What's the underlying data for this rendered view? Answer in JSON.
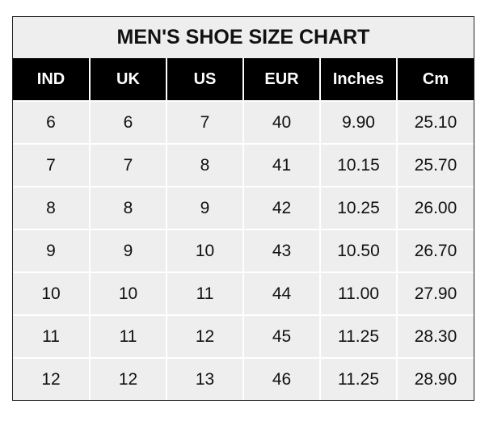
{
  "title": "MEN'S SHOE SIZE CHART",
  "columns": [
    "IND",
    "UK",
    "US",
    "EUR",
    "Inches",
    "Cm"
  ],
  "rows": [
    [
      "6",
      "6",
      "7",
      "40",
      "9.90",
      "25.10"
    ],
    [
      "7",
      "7",
      "8",
      "41",
      "10.15",
      "25.70"
    ],
    [
      "8",
      "8",
      "9",
      "42",
      "10.25",
      "26.00"
    ],
    [
      "9",
      "9",
      "10",
      "43",
      "10.50",
      "26.70"
    ],
    [
      "10",
      "10",
      "11",
      "44",
      "11.00",
      "27.90"
    ],
    [
      "11",
      "11",
      "12",
      "45",
      "11.25",
      "28.30"
    ],
    [
      "12",
      "12",
      "13",
      "46",
      "11.25",
      "28.90"
    ]
  ],
  "colors": {
    "header_bg": "#000000",
    "body_bg": "#eeeeee"
  }
}
